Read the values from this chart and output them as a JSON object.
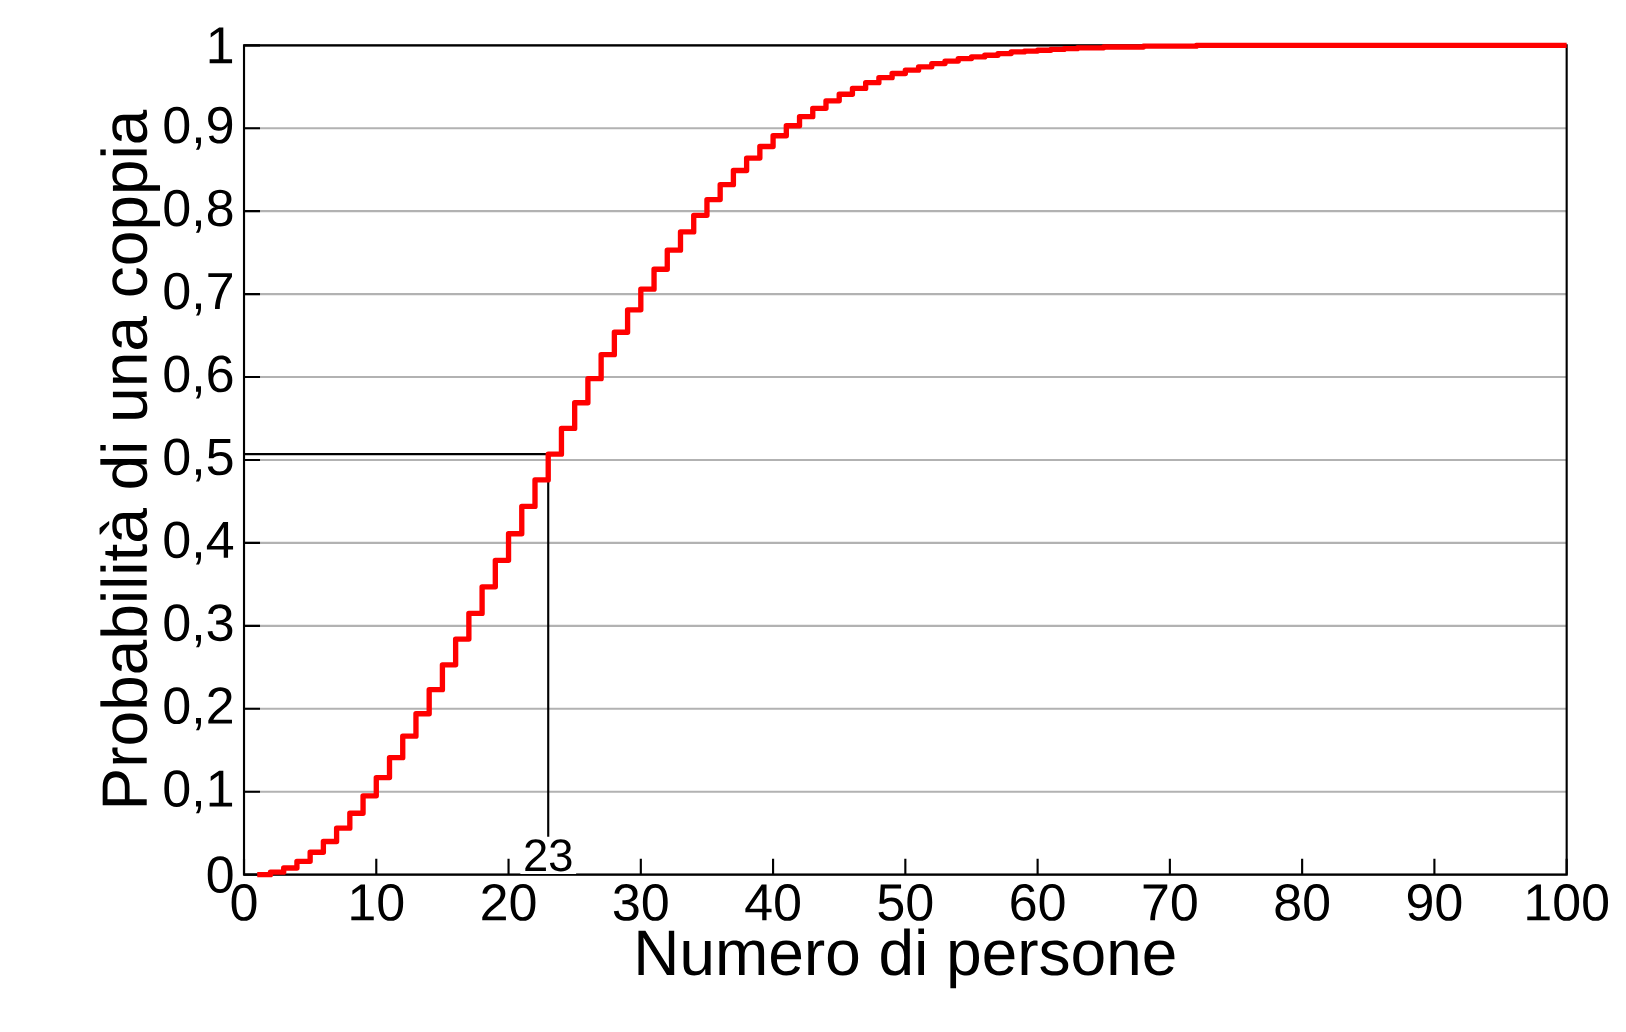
{
  "chart_data": {
    "type": "step",
    "xlabel": "Numero di persone",
    "ylabel": "Probabilità di una coppia",
    "x": [
      1,
      2,
      3,
      4,
      5,
      6,
      7,
      8,
      9,
      10,
      11,
      12,
      13,
      14,
      15,
      16,
      17,
      18,
      19,
      20,
      21,
      22,
      23,
      24,
      25,
      26,
      27,
      28,
      29,
      30,
      31,
      32,
      33,
      34,
      35,
      36,
      37,
      38,
      39,
      40,
      41,
      42,
      43,
      44,
      45,
      46,
      47,
      48,
      49,
      50,
      51,
      52,
      53,
      54,
      55,
      56,
      57,
      58,
      59,
      60,
      61,
      62,
      63,
      64,
      65,
      66,
      67,
      68,
      69,
      70,
      71,
      72,
      73,
      74,
      75,
      76,
      77,
      78,
      79,
      80,
      81,
      82,
      83,
      84,
      85,
      86,
      87,
      88,
      89,
      90,
      91,
      92,
      93,
      94,
      95,
      96,
      97,
      98,
      99,
      100
    ],
    "series": [
      {
        "color": "#ff0000",
        "values": [
          0,
          0.003,
          0.008,
          0.016,
          0.027,
          0.04,
          0.056,
          0.074,
          0.095,
          0.117,
          0.141,
          0.167,
          0.194,
          0.223,
          0.253,
          0.284,
          0.315,
          0.347,
          0.379,
          0.411,
          0.444,
          0.476,
          0.507,
          0.538,
          0.569,
          0.598,
          0.627,
          0.654,
          0.681,
          0.706,
          0.73,
          0.753,
          0.775,
          0.795,
          0.814,
          0.832,
          0.849,
          0.864,
          0.878,
          0.891,
          0.903,
          0.914,
          0.924,
          0.933,
          0.941,
          0.948,
          0.955,
          0.961,
          0.966,
          0.97,
          0.974,
          0.978,
          0.981,
          0.984,
          0.986,
          0.988,
          0.99,
          0.992,
          0.993,
          0.994,
          0.995,
          0.996,
          0.997,
          0.997,
          0.998,
          0.998,
          0.998,
          0.999,
          0.999,
          0.999,
          0.999,
          1,
          1,
          1,
          1,
          1,
          1,
          1,
          1,
          1,
          1,
          1,
          1,
          1,
          1,
          1,
          1,
          1,
          1,
          1,
          1,
          1,
          1,
          1,
          1,
          1,
          1,
          1,
          1,
          1
        ]
      }
    ],
    "xlim": [
      0,
      100
    ],
    "ylim": [
      0,
      1
    ],
    "xticks": [
      0,
      10,
      20,
      30,
      40,
      50,
      60,
      70,
      80,
      90,
      100
    ],
    "yticks": [
      0,
      {
        "value": 0.1,
        "label": "0,1"
      },
      {
        "value": 0.2,
        "label": "0,2"
      },
      {
        "value": 0.3,
        "label": "0,3"
      },
      {
        "value": 0.4,
        "label": "0,4"
      },
      {
        "value": 0.5,
        "label": "0,5"
      },
      {
        "value": 0.6,
        "label": "0,6"
      },
      {
        "value": 0.7,
        "label": "0,7"
      },
      {
        "value": 0.8,
        "label": "0,8"
      },
      {
        "value": 0.9,
        "label": "0,9"
      },
      1
    ],
    "grid": "y",
    "ref_lines": [
      {
        "axis": "x",
        "value": 23,
        "label": "23",
        "color": "#000000"
      },
      {
        "axis": "y",
        "value": 0.507,
        "color": "#000000"
      }
    ]
  }
}
